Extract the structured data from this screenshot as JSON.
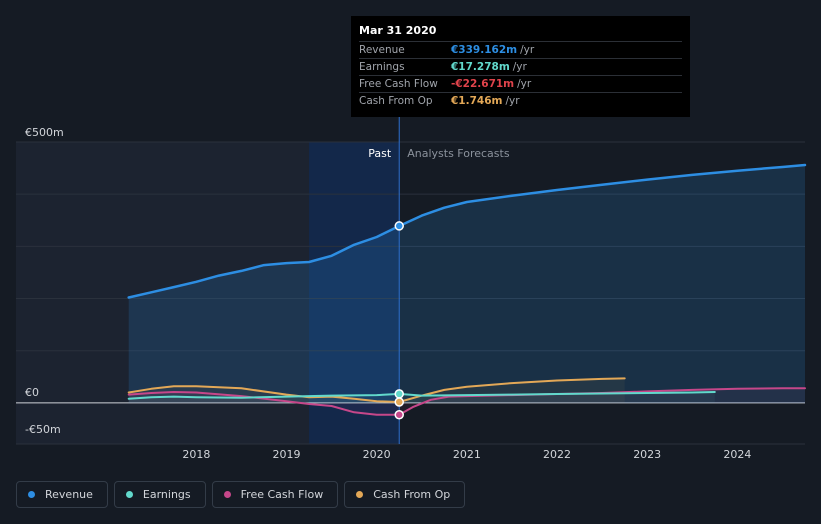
{
  "tooltip": {
    "date": "Mar 31 2020",
    "rows": [
      {
        "label": "Revenue",
        "value": "€339.162m",
        "unit": "/yr",
        "color": "#2d8ee3"
      },
      {
        "label": "Earnings",
        "value": "€17.278m",
        "unit": "/yr",
        "color": "#62d9cc"
      },
      {
        "label": "Free Cash Flow",
        "value": "-€22.671m",
        "unit": "/yr",
        "color": "#e0434b"
      },
      {
        "label": "Cash From Op",
        "value": "€1.746m",
        "unit": "/yr",
        "color": "#e3a857"
      }
    ]
  },
  "legend": [
    {
      "label": "Revenue",
      "color": "#2d8ee3"
    },
    {
      "label": "Earnings",
      "color": "#62d9cc"
    },
    {
      "label": "Free Cash Flow",
      "color": "#c6478a"
    },
    {
      "label": "Cash From Op",
      "color": "#e3a857"
    }
  ],
  "chart_data": {
    "type": "line",
    "title": "",
    "xlabel": "",
    "ylabel": "",
    "x_range": [
      2016.0,
      2024.75
    ],
    "ylim": [
      -50,
      500
    ],
    "y_tick_labels": [
      {
        "value": 500,
        "label": "€500m"
      },
      {
        "value": 0,
        "label": "€0"
      },
      {
        "value": -50,
        "label": "-€50m"
      }
    ],
    "x_ticks": [
      2018,
      2019,
      2020,
      2021,
      2022,
      2023,
      2024
    ],
    "x_tick_labels": [
      "2018",
      "2019",
      "2020",
      "2021",
      "2022",
      "2023",
      "2024"
    ],
    "past_label": "Past",
    "forecast_label": "Analysts Forecasts",
    "divider_x": 2020.25,
    "highlight_start": 2019.25,
    "series": [
      {
        "name": "Revenue",
        "color": "#2d8ee3",
        "width": 2.5,
        "area": true,
        "x": [
          2017.25,
          2017.5,
          2017.75,
          2018.0,
          2018.25,
          2018.5,
          2018.75,
          2019.0,
          2019.25,
          2019.5,
          2019.75,
          2020.0,
          2020.25,
          2020.5,
          2020.75,
          2021.0,
          2021.5,
          2022.0,
          2022.5,
          2023.0,
          2023.5,
          2024.0,
          2024.5,
          2024.75
        ],
        "y": [
          202,
          212,
          222,
          232,
          244,
          253,
          264,
          268,
          270,
          282,
          303,
          318,
          339,
          359,
          374,
          385,
          397,
          408,
          418,
          428,
          437,
          445,
          452,
          456
        ]
      },
      {
        "name": "Earnings",
        "color": "#62d9cc",
        "width": 2,
        "x": [
          2017.25,
          2017.5,
          2017.75,
          2018.0,
          2018.5,
          2019.0,
          2019.5,
          2020.0,
          2020.25,
          2020.5,
          2021.0,
          2021.5,
          2022.0,
          2022.5,
          2023.0,
          2023.5,
          2023.75
        ],
        "y": [
          8,
          11,
          12,
          11,
          10,
          12,
          14,
          15,
          17.278,
          14,
          15,
          16,
          17,
          18,
          19,
          20,
          21
        ]
      },
      {
        "name": "Free Cash Flow",
        "color": "#c6478a",
        "width": 2,
        "x": [
          2017.25,
          2017.5,
          2017.75,
          2018.0,
          2018.5,
          2019.0,
          2019.25,
          2019.5,
          2019.75,
          2020.0,
          2020.25,
          2020.4,
          2020.6,
          2020.8,
          2021.0,
          2021.5,
          2022.0,
          2022.5,
          2023.0,
          2023.5,
          2024.0,
          2024.5,
          2024.75
        ],
        "y": [
          16,
          19,
          21,
          20,
          13,
          3,
          -2,
          -6,
          -18,
          -22.671,
          -22.671,
          -8,
          6,
          12,
          13,
          15,
          17,
          19,
          22,
          25,
          27,
          28,
          28
        ]
      },
      {
        "name": "Cash From Op",
        "color": "#e3a857",
        "width": 2,
        "x": [
          2017.25,
          2017.5,
          2017.75,
          2018.0,
          2018.5,
          2019.0,
          2019.25,
          2019.5,
          2019.75,
          2020.0,
          2020.25,
          2020.5,
          2020.75,
          2021.0,
          2021.5,
          2022.0,
          2022.5,
          2022.75
        ],
        "y": [
          20,
          27,
          32,
          32,
          28,
          16,
          11,
          12,
          8,
          3,
          1.746,
          14,
          25,
          31,
          38,
          43,
          46,
          47
        ]
      }
    ],
    "highlight_points": [
      {
        "series": "Revenue",
        "x": 2020.25,
        "y": 339.162
      },
      {
        "series": "Earnings",
        "x": 2020.25,
        "y": 17.278
      },
      {
        "series": "Cash From Op",
        "x": 2020.25,
        "y": 1.746
      },
      {
        "series": "Free Cash Flow",
        "x": 2020.25,
        "y": -22.671
      }
    ]
  }
}
